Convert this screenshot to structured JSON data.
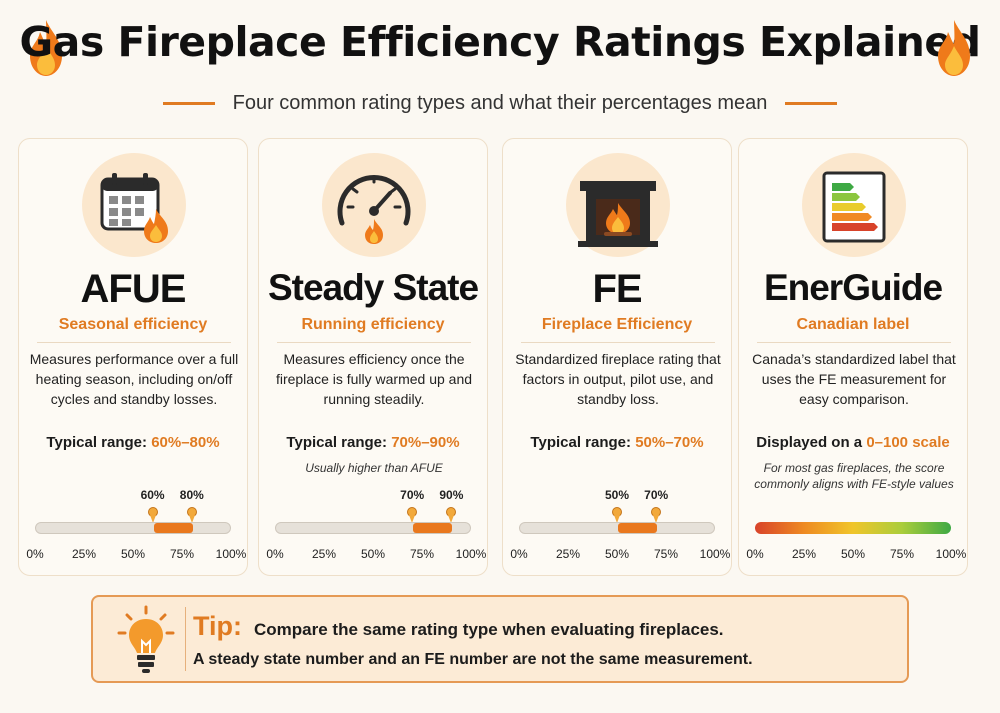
{
  "title": "Gas Fireplace Efficiency Ratings Explained",
  "subtitle": "Four common rating types and what their percentages mean",
  "colors": {
    "accent": "#e07b22",
    "card_bg": "#fdfaf4",
    "icon_bg": "#fbe7cd",
    "track": "#e6e1d9",
    "fill": "#e9781e"
  },
  "axis_ticks": [
    "0%",
    "25%",
    "50%",
    "75%",
    "100%"
  ],
  "cards": [
    {
      "title": "AFUE",
      "subtitle": "Seasonal efficiency",
      "icon": "calendar-flame-icon",
      "description": "Measures performance over a full heating season, including on/off cycles and standby losses.",
      "range_label": "Typical range: ",
      "range_value": "60%–80%",
      "note": "",
      "range_start": 60,
      "range_end": 80,
      "min_label": "60%",
      "max_label": "80%"
    },
    {
      "title": "Steady State",
      "subtitle": "Running efficiency",
      "icon": "gauge-flame-icon",
      "description": "Measures efficiency once the fireplace is fully warmed up and running steadily.",
      "range_label": "Typical range: ",
      "range_value": "70%–90%",
      "note": "Usually higher than AFUE",
      "range_start": 70,
      "range_end": 90,
      "min_label": "70%",
      "max_label": "90%"
    },
    {
      "title": "FE",
      "subtitle": "Fireplace Efficiency",
      "icon": "fireplace-icon",
      "description": "Standardized fireplace rating that factors in output, pilot use, and standby loss.",
      "range_label": "Typical range: ",
      "range_value": "50%–70%",
      "note": "",
      "range_start": 50,
      "range_end": 70,
      "min_label": "50%",
      "max_label": "70%"
    },
    {
      "title": "EnerGuide",
      "subtitle": "Canadian label",
      "icon": "energy-label-icon",
      "description": "Canada’s standardized label that uses the FE measurement for easy comparison.",
      "range_label": "Displayed on a ",
      "range_value": "0–100 scale",
      "note": "For most gas fireplaces, the score commonly aligns with FE-style values",
      "scale": "gradient"
    }
  ],
  "tip": {
    "label": "Tip:",
    "line1": "Compare the same rating type when evaluating fireplaces.",
    "line2": "A steady state number and an FE number are not the same measurement.",
    "icon": "lightbulb-icon"
  }
}
